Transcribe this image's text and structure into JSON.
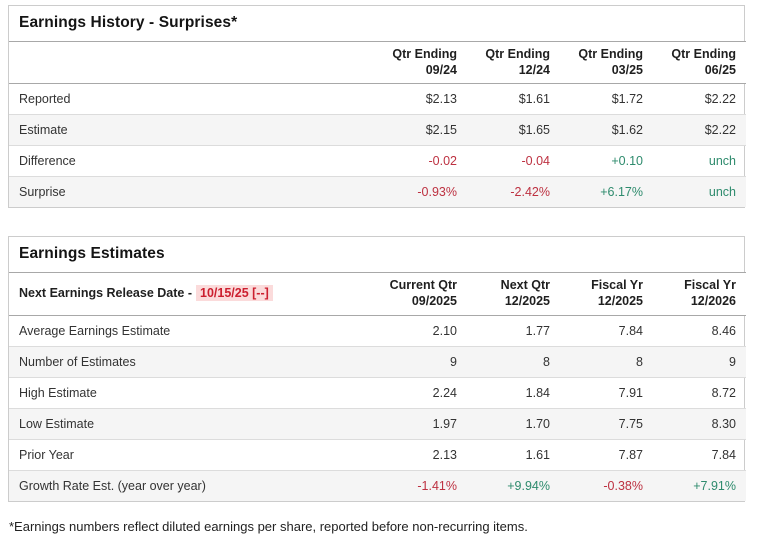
{
  "colors": {
    "positive_text": "#2e8b6d",
    "negative_text": "#bd3141",
    "release_date_text": "#cc1f2f",
    "release_date_bg": "#fbdbdb",
    "row_stripe": "#f5f5f5"
  },
  "earnings_history": {
    "title": "Earnings History - Surprises*",
    "columns": [
      {
        "line1": "Qtr Ending",
        "line2": "09/24"
      },
      {
        "line1": "Qtr Ending",
        "line2": "12/24"
      },
      {
        "line1": "Qtr Ending",
        "line2": "03/25"
      },
      {
        "line1": "Qtr Ending",
        "line2": "06/25"
      }
    ],
    "rows": [
      {
        "label": "Reported",
        "values": [
          {
            "text": "$2.13",
            "tone": ""
          },
          {
            "text": "$1.61",
            "tone": ""
          },
          {
            "text": "$1.72",
            "tone": ""
          },
          {
            "text": "$2.22",
            "tone": ""
          }
        ]
      },
      {
        "label": "Estimate",
        "values": [
          {
            "text": "$2.15",
            "tone": ""
          },
          {
            "text": "$1.65",
            "tone": ""
          },
          {
            "text": "$1.62",
            "tone": ""
          },
          {
            "text": "$2.22",
            "tone": ""
          }
        ]
      },
      {
        "label": "Difference",
        "values": [
          {
            "text": "-0.02",
            "tone": "neg"
          },
          {
            "text": "-0.04",
            "tone": "neg"
          },
          {
            "text": "+0.10",
            "tone": "pos"
          },
          {
            "text": "unch",
            "tone": "pos"
          }
        ]
      },
      {
        "label": "Surprise",
        "values": [
          {
            "text": "-0.93%",
            "tone": "neg"
          },
          {
            "text": "-2.42%",
            "tone": "neg"
          },
          {
            "text": "+6.17%",
            "tone": "pos"
          },
          {
            "text": "unch",
            "tone": "pos"
          }
        ]
      }
    ]
  },
  "earnings_estimates": {
    "title": "Earnings Estimates",
    "release_label": "Next Earnings Release Date -",
    "release_date": "10/15/25 [--]",
    "columns": [
      {
        "line1": "Current Qtr",
        "line2": "09/2025"
      },
      {
        "line1": "Next Qtr",
        "line2": "12/2025"
      },
      {
        "line1": "Fiscal Yr",
        "line2": "12/2025"
      },
      {
        "line1": "Fiscal Yr",
        "line2": "12/2026"
      }
    ],
    "rows": [
      {
        "label": "Average Earnings Estimate",
        "values": [
          {
            "text": "2.10",
            "tone": ""
          },
          {
            "text": "1.77",
            "tone": ""
          },
          {
            "text": "7.84",
            "tone": ""
          },
          {
            "text": "8.46",
            "tone": ""
          }
        ]
      },
      {
        "label": "Number of Estimates",
        "values": [
          {
            "text": "9",
            "tone": ""
          },
          {
            "text": "8",
            "tone": ""
          },
          {
            "text": "8",
            "tone": ""
          },
          {
            "text": "9",
            "tone": ""
          }
        ]
      },
      {
        "label": "High Estimate",
        "values": [
          {
            "text": "2.24",
            "tone": ""
          },
          {
            "text": "1.84",
            "tone": ""
          },
          {
            "text": "7.91",
            "tone": ""
          },
          {
            "text": "8.72",
            "tone": ""
          }
        ]
      },
      {
        "label": "Low Estimate",
        "values": [
          {
            "text": "1.97",
            "tone": ""
          },
          {
            "text": "1.70",
            "tone": ""
          },
          {
            "text": "7.75",
            "tone": ""
          },
          {
            "text": "8.30",
            "tone": ""
          }
        ]
      },
      {
        "label": "Prior Year",
        "values": [
          {
            "text": "2.13",
            "tone": ""
          },
          {
            "text": "1.61",
            "tone": ""
          },
          {
            "text": "7.87",
            "tone": ""
          },
          {
            "text": "7.84",
            "tone": ""
          }
        ]
      },
      {
        "label": "Growth Rate Est. (year over year)",
        "values": [
          {
            "text": "-1.41%",
            "tone": "neg"
          },
          {
            "text": "+9.94%",
            "tone": "pos"
          },
          {
            "text": "-0.38%",
            "tone": "neg"
          },
          {
            "text": "+7.91%",
            "tone": "pos"
          }
        ]
      }
    ]
  },
  "footnote": "*Earnings numbers reflect diluted earnings per share, reported before non-recurring items."
}
